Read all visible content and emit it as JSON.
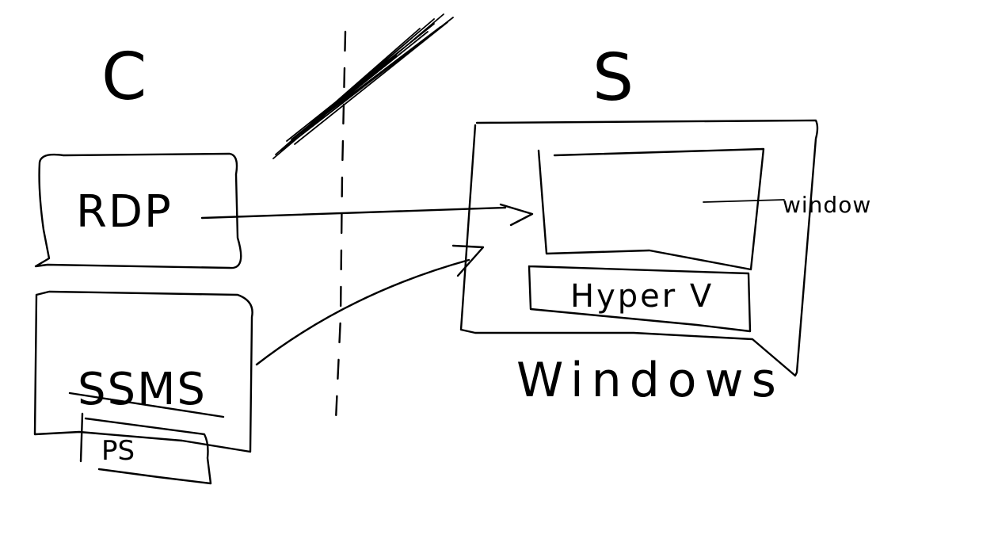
{
  "client_label": "C",
  "server_label": "S",
  "client": {
    "rdp_label": "RDP",
    "ssms_label": "SSMS",
    "ps_label": "PS"
  },
  "server": {
    "window_label": "window",
    "hyperv_label": "Hyper V",
    "os_label": "Windows"
  }
}
